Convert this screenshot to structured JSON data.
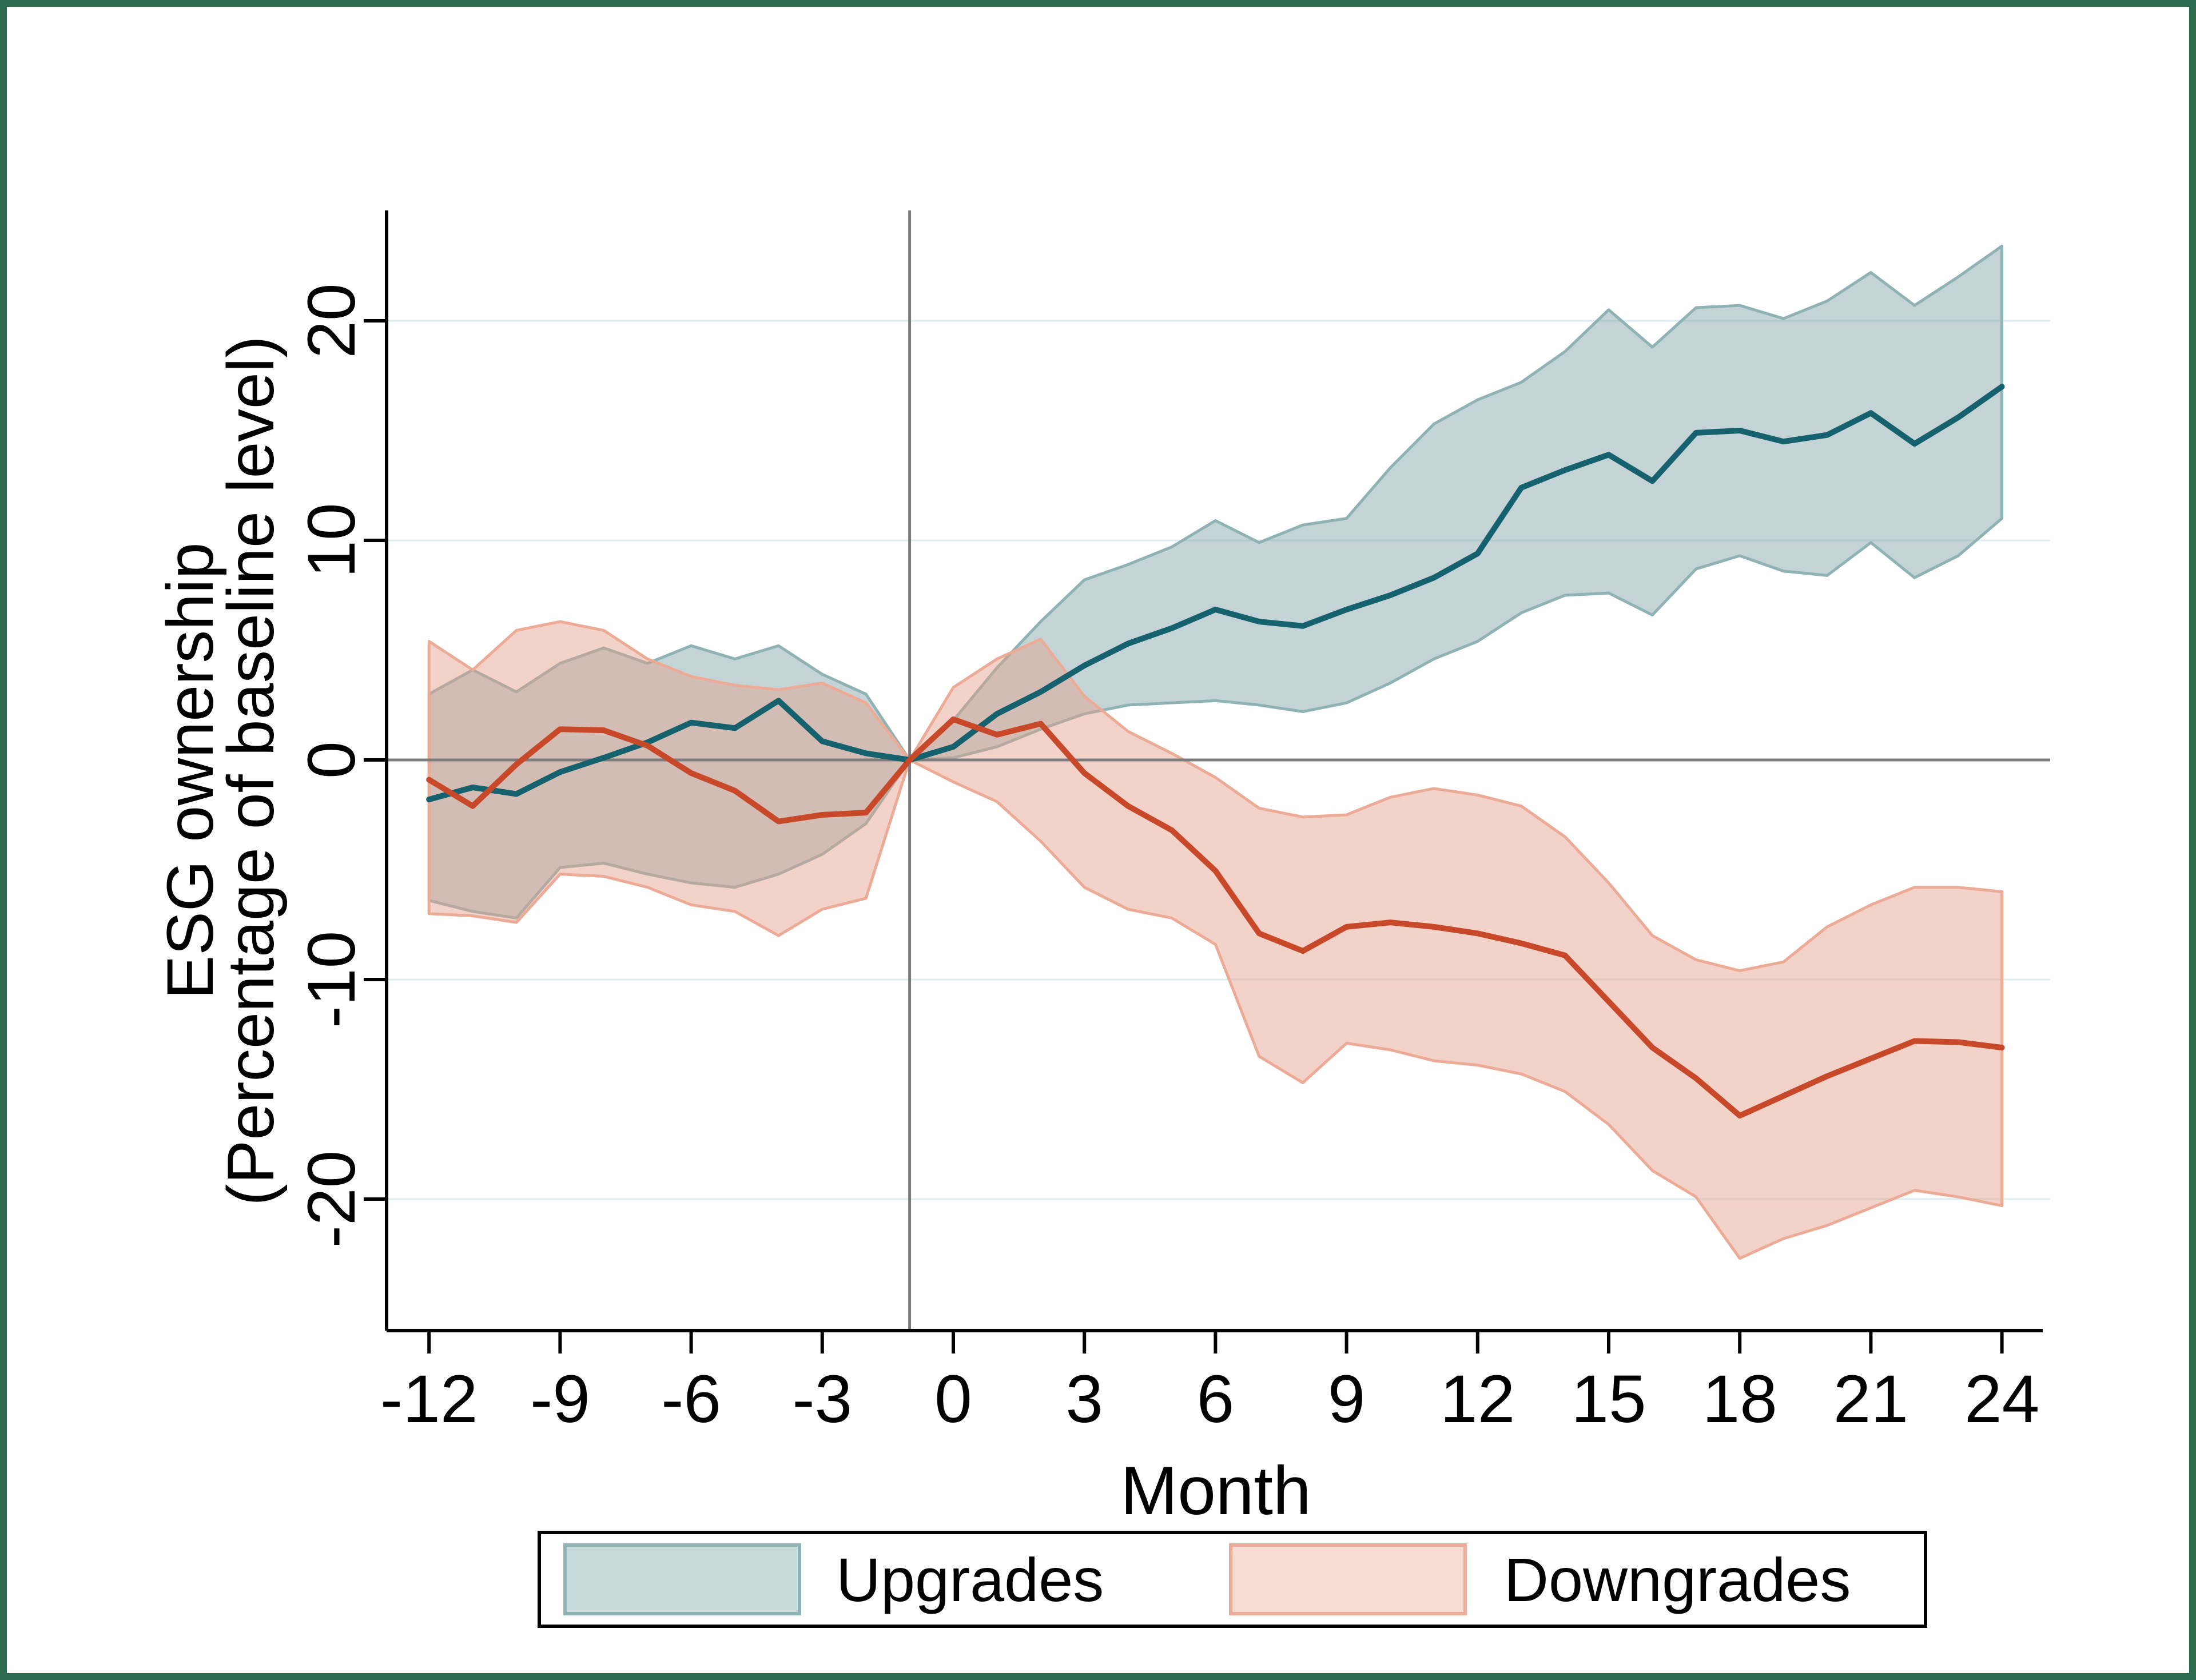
{
  "figure": {
    "border_color": "#2d6b4e",
    "background": "#ffffff"
  },
  "legend": {
    "items": [
      {
        "label": "Upgrades",
        "series": "upgrades"
      },
      {
        "label": "Downgrades",
        "series": "downgrades"
      }
    ]
  },
  "chart_data": {
    "type": "line",
    "title": "",
    "xlabel": "Month",
    "ylabel_line1": "ESG ownership",
    "ylabel_line2": "(Percentage of baseline level)",
    "x": [
      -12,
      -11,
      -10,
      -9,
      -8,
      -7,
      -6,
      -5,
      -4,
      -3,
      -2,
      -1,
      0,
      1,
      2,
      3,
      4,
      5,
      6,
      7,
      8,
      9,
      10,
      11,
      12,
      13,
      14,
      15,
      16,
      17,
      18,
      19,
      20,
      21,
      22,
      23,
      24
    ],
    "x_ticks": [
      -12,
      -9,
      -6,
      -3,
      0,
      3,
      6,
      9,
      12,
      15,
      18,
      21,
      24
    ],
    "x_tick_labels": [
      "-12",
      "-9",
      "-6",
      "-3",
      "0",
      "3",
      "6",
      "9",
      "12",
      "15",
      "18",
      "21",
      "24"
    ],
    "y_ticks": [
      20,
      10,
      0,
      -10,
      -20
    ],
    "y_tick_labels": [
      "20",
      "10",
      "0",
      "-10",
      "-20"
    ],
    "y_gridlines": [
      20,
      10,
      -10,
      -20
    ],
    "xlim": [
      -13.5,
      25.2
    ],
    "ylim": [
      -26,
      25
    ],
    "grid": true,
    "legend_position": "bottom",
    "ref_vline_month": -1,
    "ref_hline_value": 0,
    "series": [
      {
        "name": "Upgrades",
        "line_color": "#15616e",
        "edge_color": "#8fb2b5",
        "fill_color": "rgba(124,160,165,0.45)",
        "swatch_fill": "#c9dadb",
        "values": [
          -1.8,
          -1.25,
          -1.55,
          -0.55,
          0.1,
          0.8,
          1.7,
          1.45,
          2.7,
          0.85,
          0.3,
          0,
          0.6,
          2.1,
          3.1,
          4.3,
          5.3,
          6.0,
          6.85,
          6.3,
          6.1,
          6.85,
          7.5,
          8.3,
          9.4,
          12.4,
          13.2,
          13.9,
          12.7,
          14.9,
          15.0,
          14.5,
          14.8,
          15.8,
          14.4,
          15.6,
          17.0
        ],
        "upper": [
          3.0,
          4.1,
          3.1,
          4.4,
          5.1,
          4.4,
          5.2,
          4.6,
          5.2,
          3.9,
          3.0,
          0,
          1.8,
          4.2,
          6.3,
          8.2,
          8.9,
          9.7,
          10.9,
          9.9,
          10.7,
          11.0,
          13.3,
          15.3,
          16.4,
          17.2,
          18.6,
          20.5,
          18.8,
          20.6,
          20.7,
          20.1,
          20.9,
          22.2,
          20.7,
          22.0,
          23.4
        ],
        "lower": [
          -6.4,
          -6.9,
          -7.2,
          -4.9,
          -4.7,
          -5.2,
          -5.6,
          -5.8,
          -5.2,
          -4.3,
          -2.9,
          0,
          0.1,
          0.6,
          1.4,
          2.1,
          2.5,
          2.6,
          2.7,
          2.5,
          2.2,
          2.6,
          3.5,
          4.6,
          5.4,
          6.7,
          7.5,
          7.6,
          6.6,
          8.7,
          9.3,
          8.6,
          8.4,
          9.9,
          8.3,
          9.3,
          11.0
        ]
      },
      {
        "name": "Downgrades",
        "line_color": "#c8492a",
        "edge_color": "#ecab96",
        "fill_color": "rgba(228,160,138,0.46)",
        "swatch_fill": "#f6ddd4",
        "values": [
          -0.9,
          -2.1,
          -0.2,
          1.4,
          1.35,
          0.65,
          -0.6,
          -1.4,
          -2.8,
          -2.5,
          -2.4,
          0,
          1.85,
          1.15,
          1.65,
          -0.6,
          -2.1,
          -3.2,
          -5.05,
          -7.9,
          -8.7,
          -7.6,
          -7.4,
          -7.6,
          -7.9,
          -8.35,
          -8.9,
          -11.0,
          -13.1,
          -14.5,
          -16.2,
          -15.3,
          -14.4,
          -13.6,
          -12.8,
          -12.85,
          -13.1
        ],
        "upper": [
          5.4,
          4.1,
          5.9,
          6.3,
          5.9,
          4.6,
          3.8,
          3.4,
          3.2,
          3.5,
          2.6,
          0,
          3.3,
          4.6,
          5.5,
          2.9,
          1.3,
          0.3,
          -0.8,
          -2.2,
          -2.6,
          -2.5,
          -1.7,
          -1.3,
          -1.6,
          -2.1,
          -3.5,
          -5.6,
          -8.0,
          -9.1,
          -9.6,
          -9.2,
          -7.6,
          -6.6,
          -5.8,
          -5.8,
          -6.0
        ],
        "lower": [
          -7.0,
          -7.1,
          -7.4,
          -5.2,
          -5.3,
          -5.8,
          -6.6,
          -6.9,
          -8.0,
          -6.8,
          -6.3,
          0,
          -1.0,
          -1.9,
          -3.7,
          -5.8,
          -6.8,
          -7.2,
          -8.4,
          -13.5,
          -14.7,
          -12.9,
          -13.2,
          -13.7,
          -13.9,
          -14.3,
          -15.1,
          -16.6,
          -18.7,
          -19.9,
          -22.7,
          -21.8,
          -21.2,
          -20.4,
          -19.6,
          -19.9,
          -20.3
        ]
      }
    ],
    "style": {
      "grid_color": "#dfecee",
      "ref_line_color": "#7d7d7d",
      "axis_color": "#000000"
    }
  }
}
